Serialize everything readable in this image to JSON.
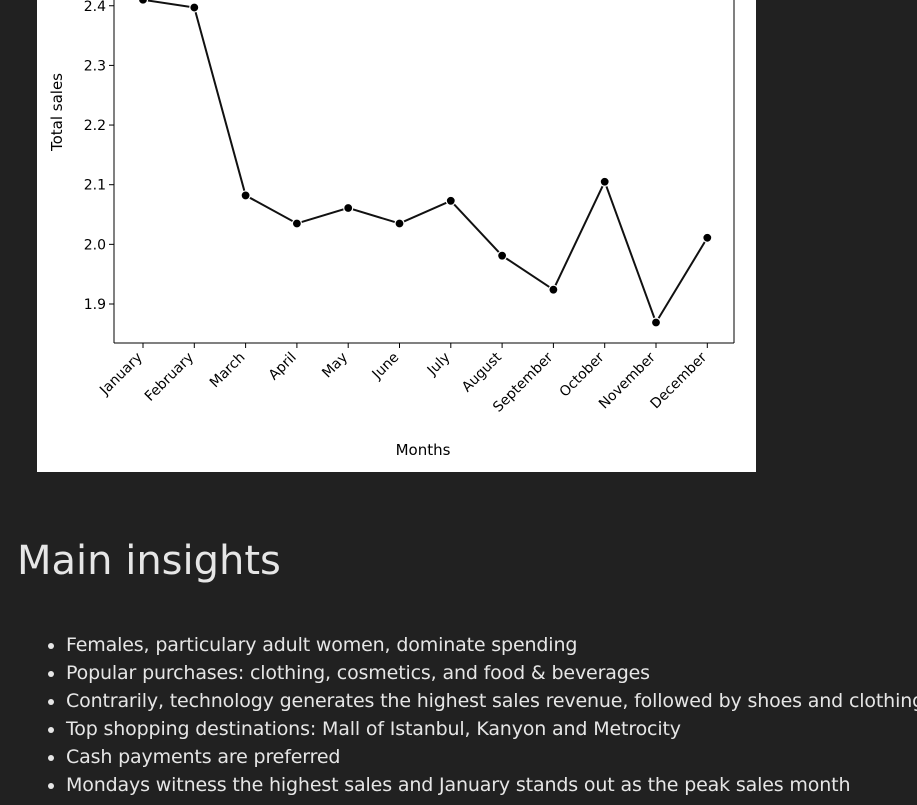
{
  "chart_data": {
    "type": "line",
    "xlabel": "Months",
    "ylabel": "Total sales",
    "categories": [
      "January",
      "February",
      "March",
      "April",
      "May",
      "June",
      "July",
      "August",
      "September",
      "October",
      "November",
      "December"
    ],
    "values": [
      2.41,
      2.397,
      2.082,
      2.035,
      2.061,
      2.035,
      2.073,
      1.981,
      1.924,
      2.105,
      1.869,
      2.011
    ],
    "yticks": [
      1.9,
      2.0,
      2.1,
      2.2,
      2.3,
      2.4
    ],
    "ylim": [
      1.835,
      2.41
    ],
    "grid": false,
    "line_color": "#111111",
    "marker_color": "#000000"
  },
  "insights": {
    "title": "Main insights",
    "items": [
      "Females, particulary adult women, dominate spending",
      "Popular purchases: clothing, cosmetics, and food & beverages",
      "Contrarily, technology generates the highest sales revenue, followed by shoes and clothing",
      "Top shopping destinations: Mall of Istanbul, Kanyon and Metrocity",
      "Cash payments are preferred",
      "Mondays witness the highest sales and January stands out as the peak sales month"
    ]
  }
}
